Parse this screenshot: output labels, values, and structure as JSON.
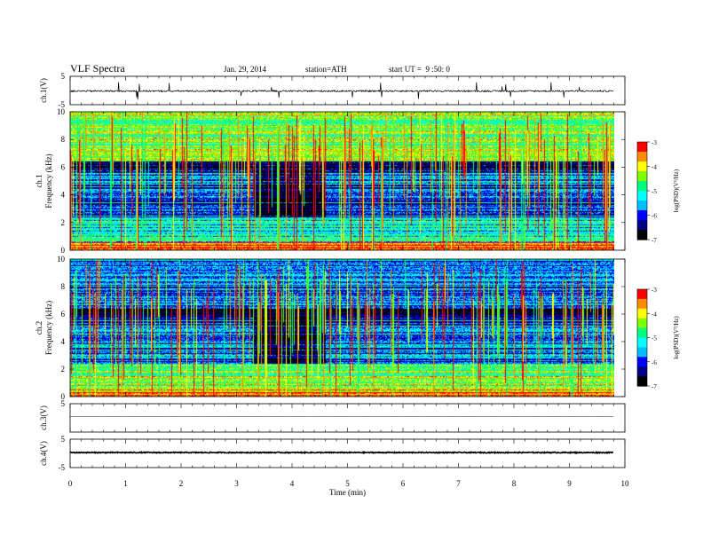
{
  "header": {
    "title": "VLF Spectra",
    "date": "Jan. 29, 2014",
    "station": "station=ATH",
    "start": "start UT =  9 :50: 0"
  },
  "colors": {
    "colormap": [
      "#000000",
      "#00008b",
      "#0000ff",
      "#00bfff",
      "#00ffff",
      "#00ff7f",
      "#7fff00",
      "#ffff00",
      "#ff8c00",
      "#ff0000",
      "#ffffff"
    ],
    "trace": "#000000"
  },
  "chart_data": [
    {
      "type": "line",
      "id": "ch1-waveform",
      "ylabel": "ch.1(V)",
      "ylim": [
        -5,
        5
      ],
      "yticks": [
        "5",
        "-5"
      ],
      "baseline": -0.2,
      "description_values": {
        "typical_amplitude": 0.6,
        "spike_amplitude": 2.5
      }
    },
    {
      "type": "heatmap",
      "id": "ch1-spectrogram",
      "ylabel": "ch.1\nFrequency (kHz)",
      "ylabel_line1": "ch.1",
      "ylabel_line2": "Frequency (kHz)",
      "ylim": [
        0,
        10
      ],
      "yticks": [
        "0",
        "2",
        "4",
        "6",
        "8",
        "10"
      ],
      "xlim": [
        0,
        9.8
      ],
      "quiet_interval_min": [
        3.3,
        4.6
      ],
      "bands": [
        {
          "from_khz": 0,
          "to_khz": 0.6,
          "level": -3.3
        },
        {
          "from_khz": 0.6,
          "to_khz": 2.4,
          "level": -5.2
        },
        {
          "from_khz": 2.4,
          "to_khz": 5.6,
          "level": -6.0
        },
        {
          "from_khz": 5.6,
          "to_khz": 6.4,
          "level": -6.7
        },
        {
          "from_khz": 6.4,
          "to_khz": 10,
          "level": -4.4
        }
      ],
      "colorbar": {
        "label": "log(PSD)(V²/Hz)",
        "ticks": [
          "-3",
          "-4",
          "-5",
          "-6",
          "-7"
        ],
        "range": [
          -7,
          -3
        ]
      }
    },
    {
      "type": "heatmap",
      "id": "ch2-spectrogram",
      "ylabel_line1": "ch.2",
      "ylabel_line2": "Frequency (kHz)",
      "ylim": [
        0,
        10
      ],
      "yticks": [
        "0",
        "2",
        "4",
        "6",
        "8",
        "10"
      ],
      "xlim": [
        0,
        9.8
      ],
      "quiet_interval_min": [
        3.3,
        4.6
      ],
      "bands": [
        {
          "from_khz": 0,
          "to_khz": 0.6,
          "level": -3.8
        },
        {
          "from_khz": 0.6,
          "to_khz": 2.4,
          "level": -4.6
        },
        {
          "from_khz": 2.4,
          "to_khz": 5.6,
          "level": -6.0
        },
        {
          "from_khz": 5.6,
          "to_khz": 6.4,
          "level": -6.8
        },
        {
          "from_khz": 6.4,
          "to_khz": 10,
          "level": -5.8
        }
      ],
      "colorbar": {
        "label": "log(PSD)(V²/Hz)",
        "ticks": [
          "-3",
          "-4",
          "-5",
          "-6",
          "-7"
        ],
        "range": [
          -7,
          -3
        ]
      }
    },
    {
      "type": "line",
      "id": "ch3-waveform",
      "ylabel": "ch.3(V)",
      "ylim": [
        -5,
        5
      ],
      "yticks": [
        "5"
      ],
      "baseline": 0.5
    },
    {
      "type": "line",
      "id": "ch4-waveform",
      "ylabel": "ch.4(V)",
      "ylim": [
        -5,
        5
      ],
      "yticks": [
        "5",
        "-5"
      ],
      "baseline": 0.3
    }
  ],
  "xaxis": {
    "label": "Time (min)",
    "ticks": [
      "0",
      "1",
      "2",
      "3",
      "4",
      "5",
      "6",
      "7",
      "8",
      "9",
      "10"
    ],
    "range": [
      0,
      10
    ],
    "data_end": 9.8
  }
}
